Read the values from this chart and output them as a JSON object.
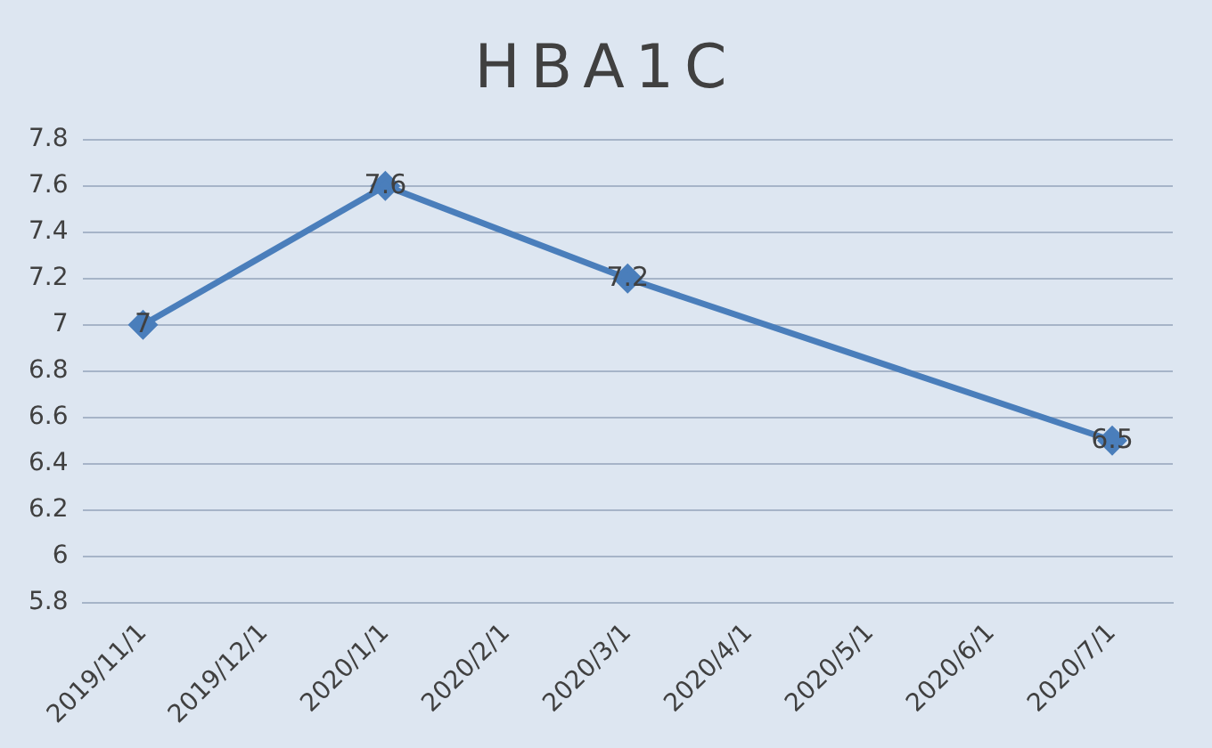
{
  "chart_data": {
    "type": "line",
    "title": "HBA1C",
    "categories": [
      "2019/11/1",
      "2019/12/1",
      "2020/1/1",
      "2020/2/1",
      "2020/3/1",
      "2020/4/1",
      "2020/5/1",
      "2020/6/1",
      "2020/7/1"
    ],
    "series": [
      {
        "color": "#4a7ebb",
        "values": [
          7,
          null,
          7.6,
          null,
          7.2,
          null,
          null,
          null,
          6.5
        ]
      }
    ],
    "ylim": [
      5.8,
      7.8
    ],
    "yticks": [
      5.8,
      6,
      6.2,
      6.4,
      6.6,
      6.8,
      7,
      7.2,
      7.4,
      7.6,
      7.8
    ],
    "grid": "y",
    "legend": false,
    "marker": "diamond",
    "line_style": "solid",
    "data_labels": true
  }
}
